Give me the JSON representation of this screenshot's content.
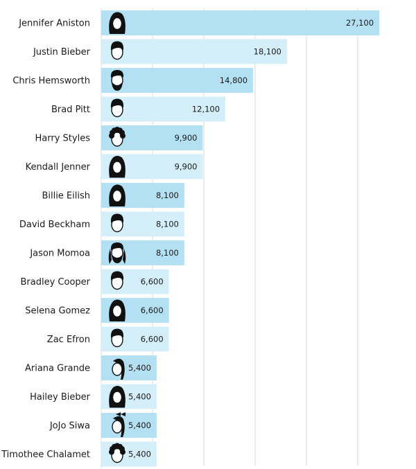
{
  "colors": {
    "bar_dark": "#b3e0f2",
    "bar_light": "#d4effa",
    "grid": "#d9d9d9",
    "text": "#1a1a1a"
  },
  "chart_data": {
    "type": "bar",
    "orientation": "horizontal",
    "categories": [
      "Jennifer Aniston",
      "Justin Bieber",
      "Chris Hemsworth",
      "Brad Pitt",
      "Harry Styles",
      "Kendall Jenner",
      "Billie Eilish",
      "David Beckham",
      "Jason Momoa",
      "Bradley Cooper",
      "Selena Gomez",
      "Zac Efron",
      "Ariana Grande",
      "Hailey Bieber",
      "JoJo Siwa",
      "Timothee Chalamet"
    ],
    "values": [
      27100,
      18100,
      14800,
      12100,
      9900,
      9900,
      8100,
      8100,
      8100,
      6600,
      6600,
      6600,
      5400,
      5400,
      5400,
      5400
    ],
    "value_labels": [
      "27,100",
      "18,100",
      "14,800",
      "12,100",
      "9,900",
      "9,900",
      "8,100",
      "8,100",
      "8,100",
      "6,600",
      "6,600",
      "6,600",
      "5,400",
      "5,400",
      "5,400",
      "5,400"
    ],
    "icons": [
      "long-hair-woman-icon",
      "short-hair-man-icon",
      "bearded-man-icon",
      "short-hair-man-icon",
      "curly-hair-man-icon",
      "long-hair-woman-icon",
      "long-hair-woman-icon",
      "short-hair-man-icon",
      "bearded-long-hair-man-icon",
      "short-hair-man-icon",
      "long-hair-woman-icon",
      "short-hair-man-icon",
      "ponytail-woman-icon",
      "long-hair-woman-icon",
      "ponytail-bow-woman-icon",
      "curly-hair-man-icon"
    ],
    "xlim": [
      0,
      30000
    ],
    "gridlines": [
      5000,
      10000,
      15000,
      20000,
      25000
    ],
    "grid": true,
    "title": "",
    "xlabel": "",
    "ylabel": ""
  }
}
